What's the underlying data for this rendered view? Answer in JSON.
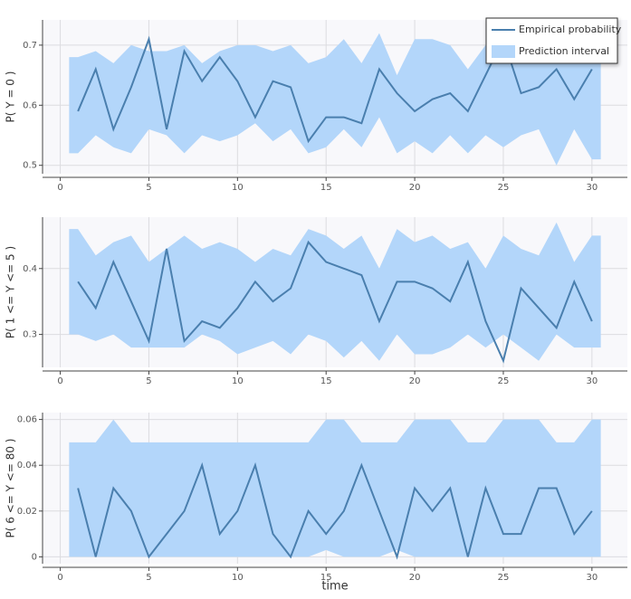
{
  "chart_data": [
    {
      "type": "line",
      "ylabel": "P( Y = 0 )",
      "legend": "upper right",
      "x": [
        1,
        2,
        3,
        4,
        5,
        6,
        7,
        8,
        9,
        10,
        11,
        12,
        13,
        14,
        15,
        16,
        17,
        18,
        19,
        20,
        21,
        22,
        23,
        24,
        25,
        26,
        27,
        28,
        29,
        30
      ],
      "series": [
        {
          "name": "Empirical probability",
          "color": "#4a7fae",
          "values": [
            0.59,
            0.66,
            0.56,
            0.63,
            0.71,
            0.56,
            0.69,
            0.64,
            0.68,
            0.64,
            0.58,
            0.64,
            0.63,
            0.54,
            0.58,
            0.58,
            0.57,
            0.66,
            0.62,
            0.59,
            0.61,
            0.62,
            0.59,
            0.65,
            0.71,
            0.62,
            0.63,
            0.66,
            0.61,
            0.66
          ]
        }
      ],
      "band": {
        "name": "Prediction interval",
        "color": "#b3d6fa",
        "x": [
          0.5,
          1,
          2,
          3,
          4,
          5,
          6,
          7,
          8,
          9,
          10,
          11,
          12,
          13,
          14,
          15,
          16,
          17,
          18,
          19,
          20,
          21,
          22,
          23,
          24,
          25,
          26,
          27,
          28,
          29,
          30,
          30.5
        ],
        "upper": [
          0.68,
          0.68,
          0.69,
          0.67,
          0.7,
          0.69,
          0.69,
          0.7,
          0.67,
          0.69,
          0.7,
          0.7,
          0.69,
          0.7,
          0.67,
          0.68,
          0.71,
          0.67,
          0.72,
          0.65,
          0.71,
          0.71,
          0.7,
          0.66,
          0.7,
          0.73,
          0.7,
          0.7,
          0.68,
          0.69,
          0.7,
          0.7
        ],
        "lower": [
          0.52,
          0.52,
          0.55,
          0.53,
          0.52,
          0.56,
          0.55,
          0.52,
          0.55,
          0.54,
          0.55,
          0.57,
          0.54,
          0.56,
          0.52,
          0.53,
          0.56,
          0.53,
          0.58,
          0.52,
          0.54,
          0.52,
          0.55,
          0.52,
          0.55,
          0.53,
          0.55,
          0.56,
          0.5,
          0.56,
          0.51,
          0.51
        ]
      },
      "xlim": [
        -1,
        32
      ],
      "xticks": [
        0,
        5,
        10,
        15,
        20,
        25,
        30
      ],
      "ylim": [
        0.486,
        0.742
      ],
      "yticks": [
        0.5,
        0.6,
        0.7
      ],
      "grid": true
    },
    {
      "type": "line",
      "ylabel": "P( 1 <= Y <= 5 )",
      "x": [
        1,
        2,
        3,
        4,
        5,
        6,
        7,
        8,
        9,
        10,
        11,
        12,
        13,
        14,
        15,
        16,
        17,
        18,
        19,
        20,
        21,
        22,
        23,
        24,
        25,
        26,
        27,
        28,
        29,
        30
      ],
      "series": [
        {
          "color": "#4a7fae",
          "values": [
            0.38,
            0.34,
            0.41,
            0.35,
            0.29,
            0.43,
            0.29,
            0.32,
            0.31,
            0.34,
            0.38,
            0.35,
            0.37,
            0.44,
            0.41,
            0.4,
            0.39,
            0.32,
            0.38,
            0.38,
            0.37,
            0.35,
            0.41,
            0.32,
            0.26,
            0.37,
            0.34,
            0.31,
            0.38,
            0.32
          ]
        }
      ],
      "band": {
        "color": "#b3d6fa",
        "x": [
          0.5,
          1,
          2,
          3,
          4,
          5,
          6,
          7,
          8,
          9,
          10,
          11,
          12,
          13,
          14,
          15,
          16,
          17,
          18,
          19,
          20,
          21,
          22,
          23,
          24,
          25,
          26,
          27,
          28,
          29,
          30,
          30.5
        ],
        "upper": [
          0.46,
          0.46,
          0.42,
          0.44,
          0.45,
          0.41,
          0.43,
          0.45,
          0.43,
          0.44,
          0.43,
          0.41,
          0.43,
          0.42,
          0.46,
          0.45,
          0.43,
          0.45,
          0.4,
          0.46,
          0.44,
          0.45,
          0.43,
          0.44,
          0.4,
          0.45,
          0.43,
          0.42,
          0.47,
          0.41,
          0.45,
          0.45
        ],
        "lower": [
          0.3,
          0.3,
          0.29,
          0.3,
          0.28,
          0.28,
          0.28,
          0.28,
          0.3,
          0.29,
          0.27,
          0.28,
          0.29,
          0.27,
          0.3,
          0.29,
          0.265,
          0.29,
          0.26,
          0.3,
          0.27,
          0.27,
          0.28,
          0.3,
          0.28,
          0.3,
          0.28,
          0.26,
          0.3,
          0.28,
          0.28,
          0.28
        ]
      },
      "xlim": [
        -1,
        32
      ],
      "xticks": [
        0,
        5,
        10,
        15,
        20,
        25,
        30
      ],
      "ylim": [
        0.25,
        0.478
      ],
      "yticks": [
        0.3,
        0.4
      ],
      "grid": true
    },
    {
      "type": "line",
      "ylabel": "P( 6 <= Y <= 80 )",
      "xlabel": "time",
      "x": [
        1,
        2,
        3,
        4,
        5,
        6,
        7,
        8,
        9,
        10,
        11,
        12,
        13,
        14,
        15,
        16,
        17,
        18,
        19,
        20,
        21,
        22,
        23,
        24,
        25,
        26,
        27,
        28,
        29,
        30
      ],
      "series": [
        {
          "color": "#4a7fae",
          "values": [
            0.03,
            0,
            0.03,
            0.02,
            0,
            0.01,
            0.02,
            0.04,
            0.01,
            0.02,
            0.04,
            0.01,
            0,
            0.02,
            0.01,
            0.02,
            0.04,
            0.02,
            0,
            0.03,
            0.02,
            0.03,
            0,
            0.03,
            0.01,
            0.01,
            0.03,
            0.03,
            0.01,
            0.02
          ]
        }
      ],
      "band": {
        "color": "#b3d6fa",
        "x": [
          0.5,
          1,
          2,
          3,
          4,
          5,
          6,
          7,
          8,
          9,
          10,
          11,
          12,
          13,
          14,
          15,
          16,
          17,
          18,
          19,
          20,
          21,
          22,
          23,
          24,
          25,
          26,
          27,
          28,
          29,
          30,
          30.5
        ],
        "upper": [
          0.05,
          0.05,
          0.05,
          0.06,
          0.05,
          0.05,
          0.05,
          0.05,
          0.05,
          0.05,
          0.05,
          0.05,
          0.05,
          0.05,
          0.05,
          0.06,
          0.06,
          0.05,
          0.05,
          0.05,
          0.06,
          0.06,
          0.06,
          0.05,
          0.05,
          0.06,
          0.06,
          0.06,
          0.05,
          0.05,
          0.06,
          0.06
        ],
        "lower": [
          0,
          0,
          0,
          0,
          0,
          0,
          0,
          0,
          0,
          0,
          0,
          0,
          0,
          0,
          0,
          0.003,
          0,
          0,
          0,
          0.003,
          0,
          0,
          0,
          0,
          0,
          0,
          0,
          0,
          0,
          0,
          0,
          0
        ]
      },
      "xlim": [
        -1,
        32
      ],
      "xticks": [
        0,
        5,
        10,
        15,
        20,
        25,
        30
      ],
      "ylim": [
        -0.003,
        0.063
      ],
      "yticks": [
        0,
        0.02,
        0.04,
        0.06
      ],
      "grid": true
    }
  ]
}
